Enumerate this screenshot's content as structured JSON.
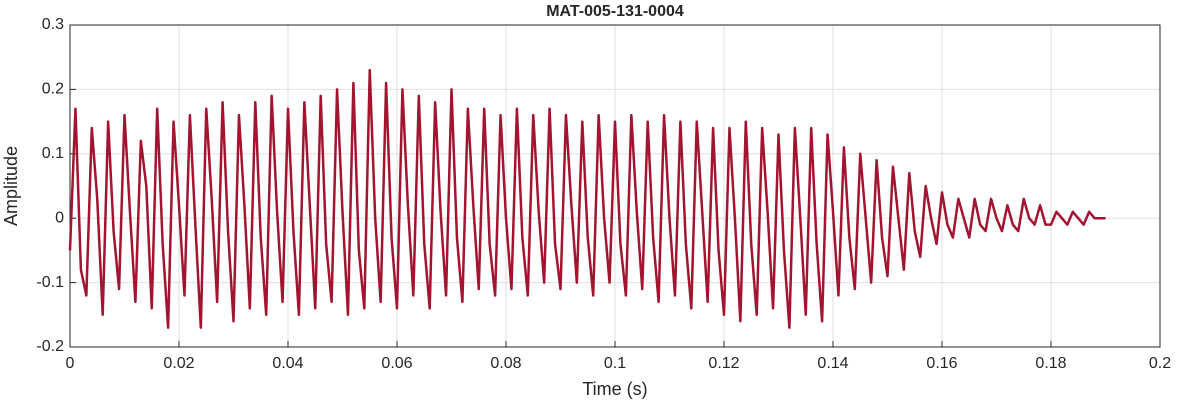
{
  "chart_data": {
    "type": "line",
    "title": "MAT-005-131-0004",
    "x_label": "Time (s)",
    "y_label": "Amplitude",
    "x": [
      0,
      0.001,
      0.002,
      0.003,
      0.004,
      0.005,
      0.006,
      0.007,
      0.008,
      0.009,
      0.01,
      0.011,
      0.012,
      0.013,
      0.014,
      0.015,
      0.016,
      0.017,
      0.018,
      0.019,
      0.02,
      0.021,
      0.022,
      0.023,
      0.024,
      0.025,
      0.026,
      0.027,
      0.028,
      0.029,
      0.03,
      0.031,
      0.032,
      0.033,
      0.034,
      0.035,
      0.036,
      0.037,
      0.038,
      0.039,
      0.04,
      0.041,
      0.042,
      0.043,
      0.044,
      0.045,
      0.046,
      0.047,
      0.048,
      0.049,
      0.05,
      0.051,
      0.052,
      0.053,
      0.054,
      0.055,
      0.056,
      0.057,
      0.058,
      0.059,
      0.06,
      0.061,
      0.062,
      0.063,
      0.064,
      0.065,
      0.066,
      0.067,
      0.068,
      0.069,
      0.07,
      0.071,
      0.072,
      0.073,
      0.074,
      0.075,
      0.076,
      0.077,
      0.078,
      0.079,
      0.08,
      0.081,
      0.082,
      0.083,
      0.084,
      0.085,
      0.086,
      0.087,
      0.088,
      0.089,
      0.09,
      0.091,
      0.092,
      0.093,
      0.094,
      0.095,
      0.096,
      0.097,
      0.098,
      0.099,
      0.1,
      0.101,
      0.102,
      0.103,
      0.104,
      0.105,
      0.106,
      0.107,
      0.108,
      0.109,
      0.11,
      0.111,
      0.112,
      0.113,
      0.114,
      0.115,
      0.116,
      0.117,
      0.118,
      0.119,
      0.12,
      0.121,
      0.122,
      0.123,
      0.124,
      0.125,
      0.126,
      0.127,
      0.128,
      0.129,
      0.13,
      0.131,
      0.132,
      0.133,
      0.134,
      0.135,
      0.136,
      0.137,
      0.138,
      0.139,
      0.14,
      0.141,
      0.142,
      0.143,
      0.144,
      0.145,
      0.146,
      0.147,
      0.148,
      0.149,
      0.15,
      0.151,
      0.152,
      0.153,
      0.154,
      0.155,
      0.156,
      0.157,
      0.158,
      0.159,
      0.16,
      0.161,
      0.162,
      0.163,
      0.164,
      0.165,
      0.166,
      0.167,
      0.168,
      0.169,
      0.17,
      0.171,
      0.172,
      0.173,
      0.174,
      0.175,
      0.176,
      0.177,
      0.178,
      0.179,
      0.18,
      0.181,
      0.182,
      0.183,
      0.184,
      0.185,
      0.186,
      0.187,
      0.188,
      0.189,
      0.19
    ],
    "series": [
      {
        "name": "Amplitude",
        "color": "#a2142f",
        "values": [
          -0.05,
          0.17,
          -0.08,
          -0.12,
          0.14,
          0.03,
          -0.15,
          0.15,
          -0.02,
          -0.11,
          0.16,
          0.01,
          -0.13,
          0.12,
          0.05,
          -0.14,
          0.17,
          -0.04,
          -0.17,
          0.15,
          0.02,
          -0.12,
          0.16,
          -0.01,
          -0.17,
          0.17,
          0.03,
          -0.13,
          0.18,
          -0.02,
          -0.16,
          0.16,
          0.02,
          -0.14,
          0.18,
          -0.03,
          -0.15,
          0.19,
          0.01,
          -0.13,
          0.17,
          -0.02,
          -0.15,
          0.18,
          0.02,
          -0.14,
          0.19,
          -0.04,
          -0.13,
          0.2,
          0.01,
          -0.15,
          0.21,
          -0.05,
          -0.14,
          0.23,
          0,
          -0.13,
          0.21,
          -0.03,
          -0.14,
          0.2,
          0.02,
          -0.12,
          0.19,
          -0.04,
          -0.14,
          0.18,
          0.01,
          -0.12,
          0.2,
          -0.03,
          -0.13,
          0.17,
          0.02,
          -0.11,
          0.17,
          -0.04,
          -0.12,
          0.16,
          0,
          -0.11,
          0.17,
          -0.03,
          -0.12,
          0.16,
          0.01,
          -0.1,
          0.17,
          -0.04,
          -0.11,
          0.16,
          0.02,
          -0.1,
          0.15,
          -0.03,
          -0.12,
          0.16,
          0,
          -0.1,
          0.15,
          -0.04,
          -0.12,
          0.16,
          0.01,
          -0.11,
          0.15,
          -0.03,
          -0.13,
          0.16,
          0,
          -0.12,
          0.15,
          -0.04,
          -0.14,
          0.15,
          0.01,
          -0.13,
          0.14,
          -0.05,
          -0.15,
          0.14,
          0,
          -0.16,
          0.15,
          -0.04,
          -0.15,
          0.14,
          0.01,
          -0.14,
          0.13,
          -0.05,
          -0.17,
          0.14,
          0,
          -0.15,
          0.14,
          -0.04,
          -0.16,
          0.13,
          0.01,
          -0.12,
          0.11,
          -0.03,
          -0.11,
          0.1,
          0,
          -0.1,
          0.09,
          -0.03,
          -0.09,
          0.08,
          0,
          -0.08,
          0.07,
          -0.02,
          -0.06,
          0.05,
          0,
          -0.04,
          0.04,
          -0.01,
          -0.03,
          0.03,
          0,
          -0.03,
          0.03,
          -0.01,
          -0.02,
          0.03,
          0,
          -0.02,
          0.02,
          -0.01,
          -0.02,
          0.03,
          0,
          -0.01,
          0.02,
          -0.01,
          -0.01,
          0.01,
          0,
          -0.01,
          0.01,
          0,
          -0.01,
          0.01,
          0,
          0,
          0
        ]
      }
    ],
    "xlim": [
      0,
      0.2
    ],
    "xticks": [
      0,
      0.02,
      0.04,
      0.06,
      0.08,
      0.1,
      0.12,
      0.14,
      0.16,
      0.18,
      0.2
    ],
    "ylim": [
      -0.2,
      0.3
    ],
    "yticks": [
      -0.2,
      -0.1,
      0,
      0.1,
      0.2,
      0.3
    ],
    "grid": true
  }
}
